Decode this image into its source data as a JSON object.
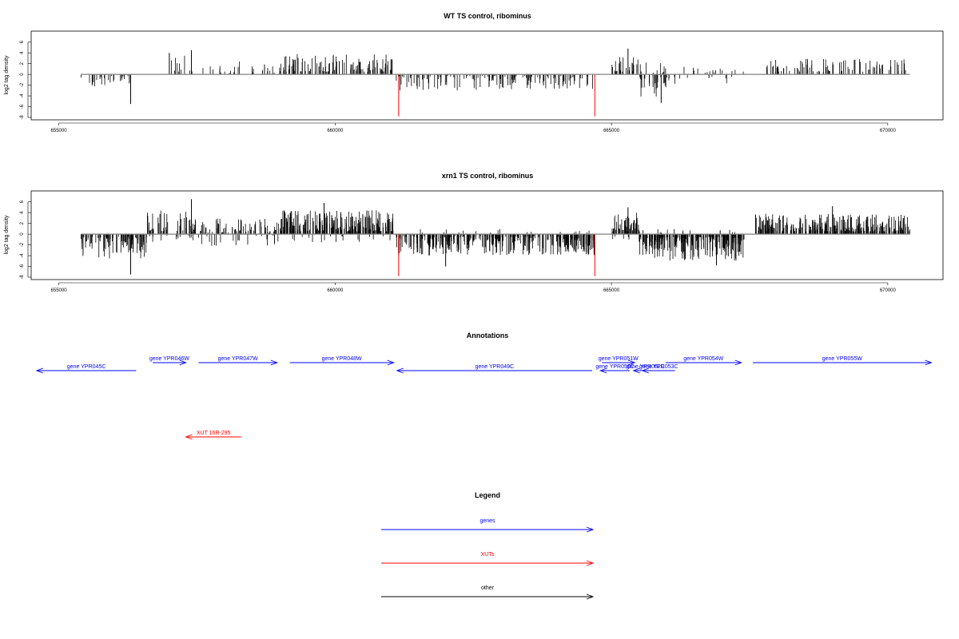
{
  "chart_data": [
    {
      "type": "bar",
      "title": "WT TS control, ribominus",
      "ylabel": "log2 tag density",
      "xlabel": "",
      "xlim": [
        654500,
        671000
      ],
      "ylim": [
        -8,
        7
      ],
      "xticks": [
        655000,
        660000,
        665000,
        670000
      ],
      "xtick_labels": [
        "655000",
        "660000",
        "665000",
        "670000"
      ],
      "yticks": [
        6,
        4,
        2,
        0,
        -2,
        -4,
        -6,
        -8
      ],
      "ytick_labels": [
        "6",
        "4",
        "2",
        "0",
        "-2",
        "-4",
        "-6",
        "-8"
      ],
      "baseline_range": [
        655400,
        670400
      ],
      "signal_regions": [
        {
          "start": 655400,
          "end": 656300,
          "sign": -1,
          "density": 0.03,
          "amp": [
            -2.5,
            -0.3
          ]
        },
        {
          "start": 656800,
          "end": 657400,
          "sign": 1,
          "density": 0.015,
          "amp": [
            0.5,
            3.5
          ]
        },
        {
          "start": 657400,
          "end": 659000,
          "sign": 1,
          "density": 0.018,
          "amp": [
            0.3,
            2.5
          ]
        },
        {
          "start": 659000,
          "end": 661050,
          "sign": 1,
          "density": 0.06,
          "amp": [
            0.5,
            3.8
          ]
        },
        {
          "start": 661100,
          "end": 664700,
          "sign": -1,
          "density": 0.04,
          "amp": [
            -3.0,
            -0.3
          ]
        },
        {
          "start": 665000,
          "end": 665500,
          "sign": 1,
          "density": 0.05,
          "amp": [
            0.5,
            3.5
          ]
        },
        {
          "start": 665500,
          "end": 666000,
          "sign": 1,
          "density": 0.02,
          "amp": [
            0.3,
            2.2
          ]
        },
        {
          "start": 665500,
          "end": 666000,
          "sign": -1,
          "density": 0.05,
          "amp": [
            -4.5,
            -0.5
          ]
        },
        {
          "start": 666000,
          "end": 667500,
          "sign": 1,
          "density": 0.01,
          "amp": [
            0.3,
            1.5
          ]
        },
        {
          "start": 666000,
          "end": 667300,
          "sign": -1,
          "density": 0.01,
          "amp": [
            -2.0,
            -0.3
          ]
        },
        {
          "start": 667800,
          "end": 670400,
          "sign": 1,
          "density": 0.035,
          "amp": [
            0.5,
            3.0
          ]
        }
      ],
      "spikes": [
        {
          "x": 656300,
          "y": -5.5,
          "color": "#000000"
        },
        {
          "x": 657000,
          "y": 4.0,
          "color": "#000000"
        },
        {
          "x": 657400,
          "y": 4.5,
          "color": "#000000"
        },
        {
          "x": 665300,
          "y": 4.8,
          "color": "#000000"
        },
        {
          "x": 665900,
          "y": -5.3,
          "color": "#000000"
        },
        {
          "x": 661150,
          "y": -7.8,
          "color": "#ff0000"
        },
        {
          "x": 664700,
          "y": -7.8,
          "color": "#ff0000"
        }
      ]
    },
    {
      "type": "bar",
      "title": "xrn1 TS control, ribominus",
      "ylabel": "log2 tag density",
      "xlabel": "",
      "xlim": [
        654500,
        671000
      ],
      "ylim": [
        -8,
        7
      ],
      "xticks": [
        655000,
        660000,
        665000,
        670000
      ],
      "xtick_labels": [
        "655000",
        "660000",
        "665000",
        "670000"
      ],
      "yticks": [
        6,
        4,
        2,
        0,
        -2,
        -4,
        -6,
        -8
      ],
      "ytick_labels": [
        "6",
        "4",
        "2",
        "0",
        "-2",
        "-4",
        "-6",
        "-8"
      ],
      "baseline_range": [
        655400,
        670400
      ],
      "signal_regions": [
        {
          "start": 655400,
          "end": 656600,
          "sign": -1,
          "density": 0.08,
          "amp": [
            -4.5,
            -0.5
          ]
        },
        {
          "start": 656600,
          "end": 657400,
          "sign": 1,
          "density": 0.05,
          "amp": [
            0.5,
            4.5
          ]
        },
        {
          "start": 656600,
          "end": 657400,
          "sign": -1,
          "density": 0.015,
          "amp": [
            -1.5,
            -0.3
          ]
        },
        {
          "start": 657400,
          "end": 659000,
          "sign": 1,
          "density": 0.05,
          "amp": [
            0.3,
            3.0
          ]
        },
        {
          "start": 657400,
          "end": 659000,
          "sign": -1,
          "density": 0.015,
          "amp": [
            -2.5,
            -0.3
          ]
        },
        {
          "start": 659000,
          "end": 661050,
          "sign": 1,
          "density": 0.12,
          "amp": [
            0.5,
            4.5
          ]
        },
        {
          "start": 659000,
          "end": 661050,
          "sign": -1,
          "density": 0.01,
          "amp": [
            -1.5,
            -0.3
          ]
        },
        {
          "start": 661100,
          "end": 664700,
          "sign": -1,
          "density": 0.1,
          "amp": [
            -4.0,
            -0.3
          ]
        },
        {
          "start": 661100,
          "end": 664700,
          "sign": 1,
          "density": 0.005,
          "amp": [
            0.3,
            1.0
          ]
        },
        {
          "start": 665000,
          "end": 665500,
          "sign": 1,
          "density": 0.1,
          "amp": [
            0.5,
            4.0
          ]
        },
        {
          "start": 665000,
          "end": 665500,
          "sign": -1,
          "density": 0.01,
          "amp": [
            -1.0,
            -0.3
          ]
        },
        {
          "start": 665500,
          "end": 667400,
          "sign": -1,
          "density": 0.12,
          "amp": [
            -5.0,
            -0.5
          ]
        },
        {
          "start": 665500,
          "end": 667400,
          "sign": 1,
          "density": 0.008,
          "amp": [
            0.3,
            1.0
          ]
        },
        {
          "start": 667600,
          "end": 670400,
          "sign": 1,
          "density": 0.1,
          "amp": [
            0.5,
            3.8
          ]
        }
      ],
      "spikes": [
        {
          "x": 656300,
          "y": -7.5,
          "color": "#000000"
        },
        {
          "x": 657400,
          "y": 6.5,
          "color": "#000000"
        },
        {
          "x": 659800,
          "y": 5.8,
          "color": "#000000"
        },
        {
          "x": 662000,
          "y": -6.0,
          "color": "#000000"
        },
        {
          "x": 665300,
          "y": 5.0,
          "color": "#000000"
        },
        {
          "x": 666900,
          "y": -5.8,
          "color": "#000000"
        },
        {
          "x": 669000,
          "y": 5.2,
          "color": "#000000"
        },
        {
          "x": 661150,
          "y": -7.8,
          "color": "#ff0000"
        },
        {
          "x": 664700,
          "y": -7.8,
          "color": "#ff0000"
        }
      ]
    }
  ],
  "annotations": {
    "title": "Annotations",
    "genes": [
      {
        "label": "gene YPR045C",
        "start": 654600,
        "end": 656400,
        "strand": "-",
        "row": 2
      },
      {
        "label": "gene YPR046W",
        "start": 656700,
        "end": 657300,
        "strand": "+",
        "row": 1
      },
      {
        "label": "gene YPR047W",
        "start": 657530,
        "end": 658950,
        "strand": "+",
        "row": 1
      },
      {
        "label": "gene YPR048W",
        "start": 659180,
        "end": 661060,
        "strand": "+",
        "row": 1
      },
      {
        "label": "gene YPR049C",
        "start": 661120,
        "end": 664650,
        "strand": "-",
        "row": 2
      },
      {
        "label": "gene YPR051W",
        "start": 664830,
        "end": 665420,
        "strand": "+",
        "row": 1
      },
      {
        "label": "gene YPR050C",
        "start": 664800,
        "end": 665330,
        "strand": "-",
        "row": 2
      },
      {
        "label": "gene YPR052C",
        "start": 665400,
        "end": 665830,
        "strand": "-",
        "row": 2
      },
      {
        "label": "gene YPR053C",
        "start": 665560,
        "end": 666150,
        "strand": "-",
        "row": 2
      },
      {
        "label": "gene YPR054W",
        "start": 665980,
        "end": 667350,
        "strand": "+",
        "row": 1
      },
      {
        "label": "gene YPR055W",
        "start": 667560,
        "end": 670790,
        "strand": "+",
        "row": 1
      }
    ],
    "xuts": [
      {
        "label": "XUT 16R-295",
        "start": 657300,
        "end": 658300,
        "strand": "-",
        "row": 3
      }
    ]
  },
  "legend": {
    "title": "Legend",
    "items": [
      {
        "label": "genes",
        "color": "#0000ff"
      },
      {
        "label": "XUTs",
        "color": "#ff0000"
      },
      {
        "label": "other",
        "color": "#000000"
      }
    ]
  },
  "colors": {
    "gene": "#0000ff",
    "xut": "#ff0000",
    "signal": "#000000",
    "axis": "#000000",
    "baseline": "#808080"
  }
}
